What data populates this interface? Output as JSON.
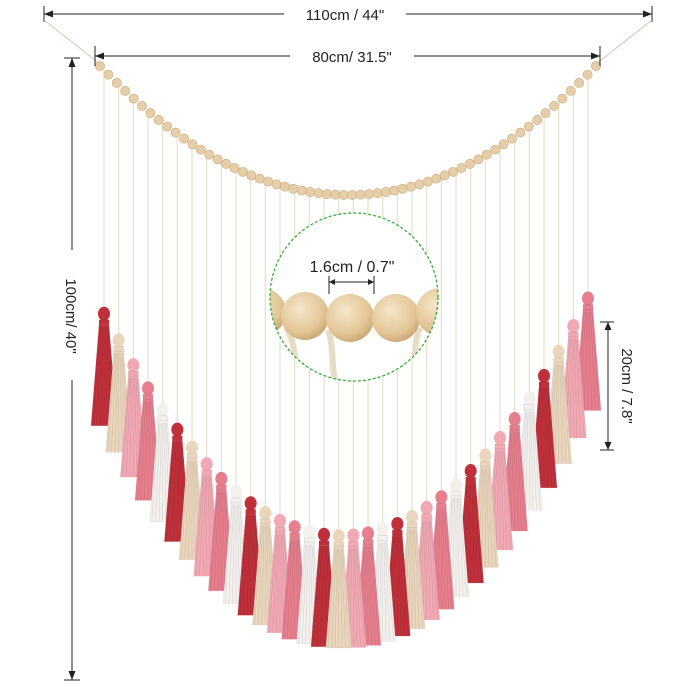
{
  "dimensions": {
    "total_width": "110cm / 44\"",
    "bead_width": "80cm/ 31.5\"",
    "height": "100cm/ 40\"",
    "tassel_length": "20cm / 7.8\"",
    "bead_diameter": "1.6cm / 0.7\""
  },
  "colors": {
    "background": "#ffffff",
    "line": "#222222",
    "bead": "#e6cfa8",
    "bead_shadow": "#caa97a",
    "string": "#e9dfcc",
    "zoom_circle": "#35b035",
    "tassel_red": "#c0303a",
    "tassel_pink": "#f2a9b4",
    "tassel_rose": "#e77e8e",
    "tassel_white": "#f3f0ee",
    "tassel_cream": "#ead6bd"
  }
}
